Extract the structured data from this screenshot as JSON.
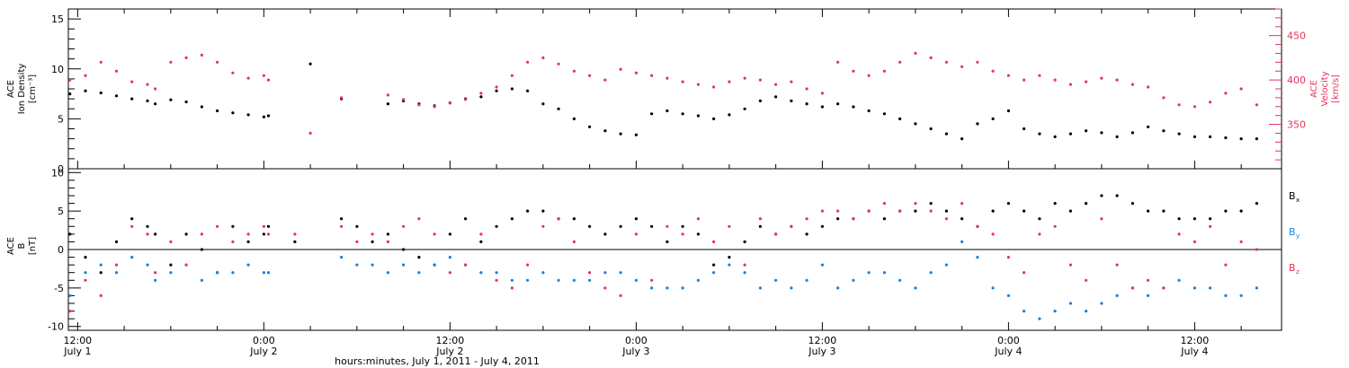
{
  "colors": {
    "density": "#000000",
    "velocity": "#e8335a",
    "bx": "#000000",
    "by": "#1e7fd8",
    "bz": "#e8335a",
    "axis": "#000000"
  },
  "chart_data": [
    {
      "type": "scatter",
      "panel": "plasma",
      "x_units": "hours since July 1 00:00 UT",
      "xlim": [
        11.4,
        89.6
      ],
      "left_axis": {
        "label_lines": [
          "ACE",
          "Ion Density",
          "[cm⁻³]"
        ],
        "ylim": [
          0,
          16
        ],
        "ticks": [
          0,
          5,
          10,
          15
        ]
      },
      "right_axis": {
        "label_lines": [
          "ACE",
          "Velocity",
          "[km/s]"
        ],
        "ylim": [
          300,
          480
        ],
        "ticks": [
          350,
          400,
          450
        ]
      },
      "grid": false,
      "series": [
        {
          "key": "density",
          "axis": "left",
          "x": [
            11.5,
            12.5,
            13.5,
            14.5,
            15.5,
            16.5,
            17,
            18,
            19,
            20,
            21,
            22,
            23,
            24,
            24.3,
            27,
            29,
            32,
            33,
            34,
            35,
            36,
            37,
            38,
            39,
            40,
            41,
            42,
            43,
            44,
            45,
            46,
            47,
            48,
            49,
            50,
            51,
            52,
            53,
            54,
            55,
            56,
            57,
            58,
            59,
            60,
            61,
            62,
            63,
            64,
            65,
            66,
            67,
            68,
            69,
            70,
            71,
            72,
            73,
            74,
            75,
            76,
            77,
            78,
            79,
            80,
            81,
            82,
            83,
            84,
            85,
            86,
            87,
            88
          ],
          "y": [
            7.5,
            7.8,
            7.6,
            7.3,
            7.0,
            6.8,
            6.5,
            6.9,
            6.7,
            6.2,
            5.8,
            5.6,
            5.4,
            5.2,
            5.3,
            10.5,
            7.0,
            6.5,
            6.8,
            6.5,
            6.3,
            6.6,
            7.0,
            7.2,
            7.8,
            8.0,
            7.8,
            6.5,
            6.0,
            5.0,
            4.2,
            3.8,
            3.5,
            3.4,
            5.5,
            5.8,
            5.5,
            5.3,
            5.0,
            5.4,
            6.0,
            6.8,
            7.2,
            6.8,
            6.5,
            6.2,
            6.5,
            6.2,
            5.8,
            5.5,
            5.0,
            4.5,
            4.0,
            3.5,
            3.0,
            4.5,
            5.0,
            5.8,
            4.0,
            3.5,
            3.2,
            3.5,
            3.8,
            3.6,
            3.2,
            3.6,
            4.2,
            3.8,
            3.5,
            3.2,
            3.2,
            3.1,
            3.0,
            3.0
          ]
        },
        {
          "key": "velocity",
          "axis": "right",
          "x": [
            11.5,
            12.5,
            13.5,
            14.5,
            15.5,
            16.5,
            17,
            18,
            19,
            20,
            21,
            22,
            23,
            24,
            24.3,
            27,
            29,
            32,
            33,
            34,
            35,
            36,
            37,
            38,
            39,
            40,
            41,
            42,
            43,
            44,
            45,
            46,
            47,
            48,
            49,
            50,
            51,
            52,
            53,
            54,
            55,
            56,
            57,
            58,
            59,
            60,
            61,
            62,
            63,
            64,
            65,
            66,
            67,
            68,
            69,
            70,
            71,
            72,
            73,
            74,
            75,
            76,
            77,
            78,
            79,
            80,
            81,
            82,
            83,
            84,
            85,
            86,
            87,
            88
          ],
          "y": [
            400,
            405,
            420,
            410,
            398,
            395,
            390,
            420,
            425,
            428,
            420,
            408,
            402,
            405,
            400,
            340,
            380,
            383,
            378,
            372,
            370,
            374,
            378,
            385,
            392,
            405,
            420,
            425,
            418,
            410,
            405,
            400,
            412,
            408,
            405,
            402,
            398,
            395,
            392,
            398,
            402,
            400,
            395,
            398,
            390,
            385,
            420,
            410,
            405,
            410,
            420,
            430,
            425,
            420,
            415,
            420,
            410,
            405,
            400,
            405,
            400,
            395,
            398,
            402,
            400,
            395,
            392,
            380,
            372,
            370,
            375,
            385,
            390,
            372
          ]
        }
      ]
    },
    {
      "type": "scatter",
      "panel": "magnetic-field",
      "x_units": "hours since July 1 00:00 UT",
      "xlim": [
        11.4,
        89.6
      ],
      "xlabel": "hours:minutes, July  1, 2011 - July  4, 2011",
      "x_ticks": [
        {
          "hour": 12,
          "time": "12:00",
          "date": "July 1"
        },
        {
          "hour": 24,
          "time": "0:00",
          "date": "July 2"
        },
        {
          "hour": 36,
          "time": "12:00",
          "date": "July 2"
        },
        {
          "hour": 48,
          "time": "0:00",
          "date": "July 3"
        },
        {
          "hour": 60,
          "time": "12:00",
          "date": "July 3"
        },
        {
          "hour": 72,
          "time": "0:00",
          "date": "July 4"
        },
        {
          "hour": 84,
          "time": "12:00",
          "date": "July 4"
        }
      ],
      "left_axis": {
        "label_lines": [
          "ACE",
          "B",
          "[nT]"
        ],
        "ylim": [
          -10.5,
          10.5
        ],
        "ticks": [
          -10,
          -5,
          0,
          5,
          10
        ]
      },
      "zero_line": true,
      "grid": false,
      "legend": {
        "placement": "right",
        "entries": [
          {
            "key": "bx",
            "label": "B",
            "sub": "x"
          },
          {
            "key": "by",
            "label": "B",
            "sub": "y"
          },
          {
            "key": "bz",
            "label": "B",
            "sub": "z"
          }
        ]
      },
      "series": [
        {
          "key": "bx",
          "x": [
            11.5,
            12.5,
            13.5,
            14.5,
            15.5,
            16.5,
            17,
            18,
            19,
            20,
            21,
            22,
            23,
            24,
            24.3,
            26,
            29,
            30,
            31,
            32,
            33,
            34,
            35,
            36,
            37,
            38,
            39,
            40,
            41,
            42,
            43,
            44,
            45,
            46,
            47,
            48,
            49,
            50,
            51,
            52,
            53,
            54,
            55,
            56,
            57,
            58,
            59,
            60,
            61,
            62,
            63,
            64,
            65,
            66,
            67,
            68,
            69,
            70,
            71,
            72,
            73,
            74,
            75,
            76,
            77,
            78,
            79,
            80,
            81,
            82,
            83,
            84,
            85,
            86,
            87,
            88
          ],
          "y": [
            2,
            -1,
            -3,
            1,
            4,
            3,
            2,
            -2,
            2,
            0,
            -3,
            3,
            1,
            2,
            3,
            1,
            4,
            3,
            1,
            2,
            0,
            -1,
            -2,
            2,
            4,
            1,
            3,
            4,
            5,
            5,
            4,
            4,
            3,
            2,
            3,
            4,
            3,
            1,
            3,
            2,
            -2,
            -1,
            1,
            3,
            2,
            3,
            2,
            3,
            4,
            4,
            5,
            4,
            5,
            5,
            6,
            5,
            4,
            3,
            5,
            6,
            5,
            4,
            6,
            5,
            6,
            7,
            7,
            6,
            5,
            5,
            4,
            4,
            4,
            5,
            5,
            6
          ]
        },
        {
          "key": "by",
          "x": [
            11.5,
            12.5,
            13.5,
            14.5,
            15.5,
            16.5,
            17,
            18,
            19,
            20,
            21,
            22,
            23,
            24,
            24.3,
            29,
            30,
            31,
            32,
            33,
            34,
            35,
            36,
            37,
            38,
            39,
            40,
            41,
            42,
            43,
            44,
            45,
            46,
            47,
            48,
            49,
            50,
            51,
            52,
            53,
            54,
            55,
            56,
            57,
            58,
            59,
            60,
            61,
            62,
            63,
            64,
            65,
            66,
            67,
            68,
            69,
            70,
            71,
            72,
            73,
            74,
            75,
            76,
            77,
            78,
            79,
            80,
            81,
            82,
            83,
            84,
            85,
            86,
            87,
            88
          ],
          "y": [
            -6,
            -3,
            -2,
            -3,
            -1,
            -2,
            -4,
            -3,
            -2,
            -4,
            -3,
            -3,
            -2,
            -3,
            -3,
            -1,
            -2,
            -2,
            -3,
            -2,
            -3,
            -2,
            -1,
            -2,
            -3,
            -3,
            -4,
            -4,
            -3,
            -4,
            -4,
            -4,
            -3,
            -3,
            -4,
            -5,
            -5,
            -5,
            -4,
            -3,
            -2,
            -3,
            -5,
            -4,
            -5,
            -4,
            -2,
            -5,
            -4,
            -3,
            -3,
            -4,
            -5,
            -3,
            -2,
            1,
            -1,
            -5,
            -6,
            -8,
            -9,
            -8,
            -7,
            -8,
            -7,
            -6,
            -5,
            -6,
            -5,
            -4,
            -5,
            -5,
            -6,
            -6,
            -5
          ]
        },
        {
          "key": "bz",
          "x": [
            11.5,
            12.5,
            13.5,
            14.5,
            15.5,
            16.5,
            17,
            18,
            19,
            20,
            21,
            22,
            23,
            24,
            24.3,
            26,
            29,
            30,
            31,
            32,
            33,
            34,
            35,
            36,
            37,
            38,
            39,
            40,
            41,
            42,
            43,
            44,
            45,
            46,
            47,
            48,
            49,
            50,
            51,
            52,
            53,
            54,
            55,
            56,
            57,
            58,
            59,
            60,
            61,
            62,
            63,
            64,
            65,
            66,
            67,
            68,
            69,
            70,
            71,
            72,
            73,
            74,
            75,
            76,
            77,
            78,
            79,
            80,
            81,
            82,
            83,
            84,
            85,
            86,
            87,
            88
          ],
          "y": [
            -8,
            -4,
            -6,
            -2,
            3,
            2,
            -3,
            1,
            -2,
            2,
            3,
            1,
            2,
            3,
            2,
            2,
            3,
            1,
            2,
            1,
            3,
            4,
            2,
            -3,
            -2,
            2,
            -4,
            -5,
            -2,
            3,
            4,
            1,
            -3,
            -5,
            -6,
            2,
            -4,
            3,
            2,
            4,
            1,
            3,
            -2,
            4,
            2,
            3,
            4,
            5,
            5,
            4,
            5,
            6,
            5,
            6,
            5,
            4,
            6,
            3,
            2,
            -1,
            -3,
            2,
            3,
            -2,
            -4,
            4,
            -2,
            -5,
            -4,
            -5,
            2,
            1,
            3,
            -2,
            1,
            0
          ]
        }
      ]
    }
  ]
}
